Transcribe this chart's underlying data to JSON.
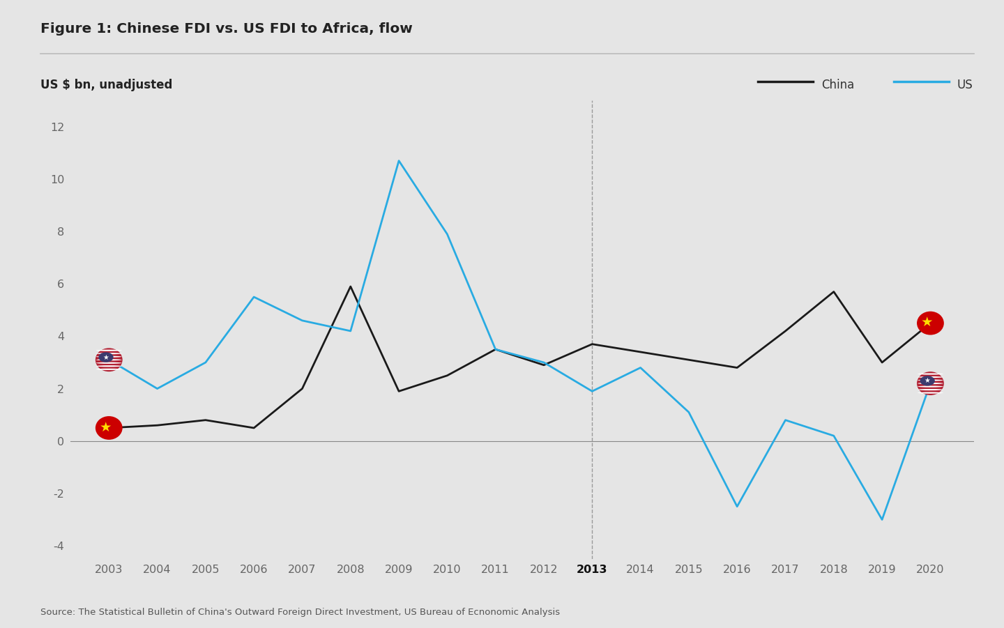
{
  "title": "Figure 1: Chinese FDI vs. US FDI to Africa, flow",
  "ylabel": "US $ bn, unadjusted",
  "source": "Source: The Statistical Bulletin of China's Outward Foreign Direct Investment, US Bureau of Ecnonomic Analysis",
  "years": [
    2003,
    2004,
    2005,
    2006,
    2007,
    2008,
    2009,
    2010,
    2011,
    2012,
    2013,
    2014,
    2015,
    2016,
    2017,
    2018,
    2019,
    2020
  ],
  "china_data": [
    0.5,
    0.6,
    0.8,
    0.5,
    2.0,
    5.9,
    1.9,
    2.5,
    3.5,
    2.9,
    3.7,
    3.4,
    3.1,
    2.8,
    4.2,
    5.7,
    3.0,
    4.5
  ],
  "us_data": [
    3.1,
    2.0,
    3.0,
    5.5,
    4.6,
    4.2,
    10.7,
    7.9,
    3.5,
    3.0,
    1.9,
    2.8,
    1.1,
    -2.5,
    0.8,
    0.2,
    -3.0,
    2.2
  ],
  "china_color": "#1a1a1a",
  "us_color": "#29abe2",
  "bg_color": "#e5e5e5",
  "plot_bg_color": "#e5e5e5",
  "divider_year": 2013,
  "ylim": [
    -4.5,
    13
  ],
  "yticks": [
    -4,
    -2,
    0,
    2,
    4,
    6,
    8,
    10,
    12
  ],
  "legend_china": "China",
  "legend_us": "US"
}
